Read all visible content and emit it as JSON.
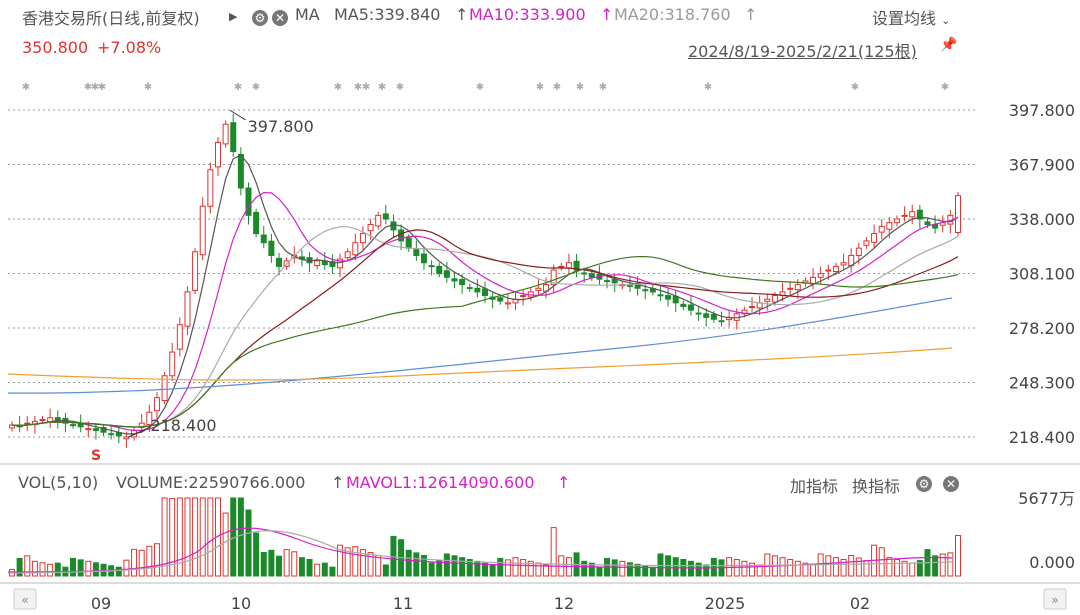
{
  "header": {
    "stock_label": "香港交易所(日线,前复权)",
    "expand_icon": "triangle-right-icon",
    "ma_label": "MA",
    "ma5": "MA5:339.840",
    "ma10": "MA10:333.900",
    "ma20": "MA20:318.760",
    "arrow": "↑",
    "settings": "设置均线",
    "price": "350.800",
    "change": "+7.08%",
    "range": "2024/8/19-2025/2/21(125根)"
  },
  "volume_header": {
    "vol": "VOL(5,10)",
    "volume": "VOLUME:22590766.000",
    "mavol1": "MAVOL1:12614090.600",
    "add_indicator": "加指标",
    "switch_indicator": "换指标"
  },
  "annotations": {
    "high": "397.800",
    "low": "218.400",
    "signal": "S"
  },
  "colors": {
    "up": "#e0332e",
    "down": "#1a8a2a",
    "ma5": "#555555",
    "ma10": "#d620c8",
    "ma20": "#aaaaaa",
    "ma30": "#8b1a1a",
    "ma60": "#3d7a1f",
    "ma120": "#5b8fd9",
    "ma250": "#f0a030"
  },
  "chart_data": {
    "type": "candlestick",
    "y_ticks": [
      "397.800",
      "367.900",
      "338.000",
      "308.100",
      "278.200",
      "248.300",
      "218.400"
    ],
    "ylim": [
      211,
      400
    ],
    "x_labels": [
      "09",
      "10",
      "11",
      "12",
      "2025",
      "02"
    ],
    "volume_ticks": [
      "5677万",
      "0.000"
    ],
    "last": {
      "open": 330.6,
      "high": 353.0,
      "low": 329.0,
      "close": 350.8
    },
    "high_value": 397.8,
    "low_value": 218.4,
    "sample_closes": [
      225,
      224,
      226,
      227,
      228,
      229,
      227,
      226,
      225,
      224,
      223,
      222,
      221,
      220,
      219,
      218.4,
      222,
      226,
      232,
      240,
      252,
      265,
      280,
      298,
      320,
      345,
      365,
      380,
      390,
      375,
      355,
      340,
      330,
      325,
      318,
      312,
      315,
      318,
      316,
      314,
      315,
      313,
      312,
      316,
      320,
      325,
      330,
      335,
      340,
      338,
      332,
      326,
      322,
      318,
      314,
      312,
      308,
      306,
      304,
      302,
      300,
      298,
      296,
      294,
      293,
      292,
      294,
      296,
      298,
      300,
      302,
      310,
      312,
      314,
      310,
      308,
      306,
      305,
      304,
      303,
      302,
      301,
      300,
      299,
      298,
      296,
      294,
      292,
      290,
      288,
      286,
      284,
      283,
      282,
      284,
      286,
      288,
      290,
      292,
      294,
      296,
      298,
      300,
      302,
      304,
      306,
      308,
      310,
      312,
      314,
      318,
      322,
      326,
      330,
      334,
      336,
      338,
      340,
      342,
      338,
      335,
      333,
      336,
      340,
      350.8
    ],
    "ma_values_at_end": {
      "ma5": 339.84,
      "ma10": 333.9,
      "ma20": 318.76
    }
  }
}
